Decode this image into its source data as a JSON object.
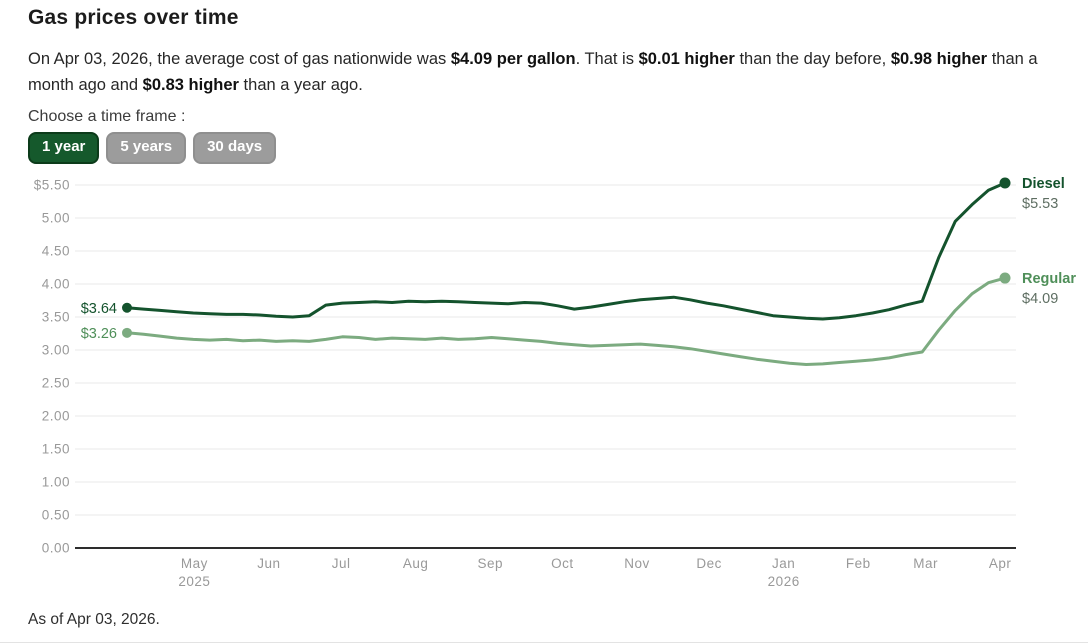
{
  "header": {
    "title": "Gas prices over time",
    "summary_segments": [
      {
        "text": "On Apr 03, 2026, the average cost of gas nationwide was ",
        "bold": false
      },
      {
        "text": "$4.09 per gallon",
        "bold": true
      },
      {
        "text": ". That is ",
        "bold": false
      },
      {
        "text": "$0.01 higher",
        "bold": true
      },
      {
        "text": " than the day before, ",
        "bold": false
      },
      {
        "text": "$0.98 higher",
        "bold": true
      },
      {
        "text": " than a month ago and ",
        "bold": false
      },
      {
        "text": "$0.83 higher",
        "bold": true
      },
      {
        "text": " than a year ago.",
        "bold": false
      }
    ]
  },
  "timeframe": {
    "label": "Choose a time frame :",
    "options": [
      {
        "label": "1 year",
        "active": true
      },
      {
        "label": "5 years",
        "active": false
      },
      {
        "label": "30 days",
        "active": false
      }
    ]
  },
  "chart_data": {
    "type": "line",
    "title": "Gas prices over time",
    "x_start": "Apr 03, 2025",
    "x_end": "Apr 03, 2026",
    "x_sampling": "weekly",
    "ylim": [
      0,
      5.5
    ],
    "grid": true,
    "legend_position": "right-end-labels",
    "y_ticks": [
      "$5.50",
      "5.00",
      "4.50",
      "4.00",
      "3.50",
      "3.00",
      "2.50",
      "2.00",
      "1.50",
      "1.00",
      "0.50",
      "0.00"
    ],
    "x_ticks": [
      {
        "label": "May",
        "sub": "2025",
        "day": 28
      },
      {
        "label": "Jun",
        "day": 59
      },
      {
        "label": "Jul",
        "day": 89
      },
      {
        "label": "Aug",
        "day": 120
      },
      {
        "label": "Sep",
        "day": 151
      },
      {
        "label": "Oct",
        "day": 181
      },
      {
        "label": "Nov",
        "day": 212
      },
      {
        "label": "Dec",
        "day": 242
      },
      {
        "label": "Jan",
        "sub": "2026",
        "day": 273
      },
      {
        "label": "Feb",
        "day": 304
      },
      {
        "label": "Mar",
        "day": 332
      },
      {
        "label": "Apr",
        "day": 363
      }
    ],
    "series": [
      {
        "name": "Diesel",
        "color": "#14532d",
        "label_color": "#14532d",
        "start_label": "$3.64",
        "end_label": "$5.53",
        "values": [
          3.64,
          3.62,
          3.6,
          3.58,
          3.56,
          3.55,
          3.54,
          3.54,
          3.53,
          3.51,
          3.5,
          3.52,
          3.68,
          3.71,
          3.72,
          3.73,
          3.72,
          3.74,
          3.73,
          3.74,
          3.73,
          3.72,
          3.71,
          3.7,
          3.72,
          3.71,
          3.67,
          3.62,
          3.65,
          3.69,
          3.73,
          3.76,
          3.78,
          3.8,
          3.76,
          3.71,
          3.67,
          3.62,
          3.57,
          3.52,
          3.5,
          3.48,
          3.47,
          3.49,
          3.52,
          3.56,
          3.61,
          3.68,
          3.74,
          4.4,
          4.95,
          5.2,
          5.42,
          5.53
        ]
      },
      {
        "name": "Regular",
        "color": "#7cab80",
        "label_color": "#4f8f59",
        "start_label": "$3.26",
        "end_label": "$4.09",
        "values": [
          3.26,
          3.24,
          3.21,
          3.18,
          3.16,
          3.15,
          3.16,
          3.14,
          3.15,
          3.13,
          3.14,
          3.13,
          3.16,
          3.2,
          3.19,
          3.16,
          3.18,
          3.17,
          3.16,
          3.18,
          3.16,
          3.17,
          3.19,
          3.17,
          3.15,
          3.13,
          3.1,
          3.08,
          3.06,
          3.07,
          3.08,
          3.09,
          3.07,
          3.05,
          3.02,
          2.98,
          2.94,
          2.9,
          2.86,
          2.83,
          2.8,
          2.78,
          2.79,
          2.81,
          2.83,
          2.85,
          2.88,
          2.93,
          2.97,
          3.3,
          3.6,
          3.85,
          4.02,
          4.09
        ]
      }
    ],
    "colors": {
      "grid": "#e8e8e8",
      "axis": "#2d2d2d",
      "tick_text": "#999999",
      "value_text": "#5e6e62"
    }
  },
  "footer": {
    "as_of": "As of Apr 03, 2026."
  }
}
